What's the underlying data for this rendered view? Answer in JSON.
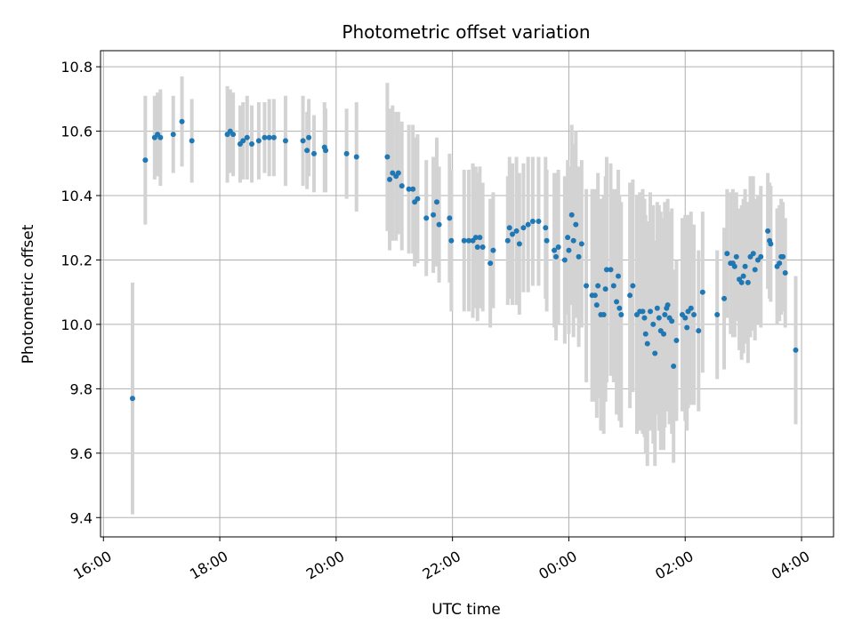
{
  "chart_data": {
    "type": "scatter",
    "title": "Photometric offset variation",
    "xlabel": "UTC time",
    "ylabel": "Photometric offset",
    "xlim_hours": [
      15.95,
      28.55
    ],
    "ylim": [
      9.34,
      10.85
    ],
    "x_ticks": [
      {
        "hour": 16,
        "label": "16:00"
      },
      {
        "hour": 18,
        "label": "18:00"
      },
      {
        "hour": 20,
        "label": "20:00"
      },
      {
        "hour": 22,
        "label": "22:00"
      },
      {
        "hour": 24,
        "label": "00:00"
      },
      {
        "hour": 26,
        "label": "02:00"
      },
      {
        "hour": 28,
        "label": "04:00"
      }
    ],
    "y_ticks": [
      {
        "value": 9.4,
        "label": "9.4"
      },
      {
        "value": 9.6,
        "label": "9.6"
      },
      {
        "value": 9.8,
        "label": "9.8"
      },
      {
        "value": 10.0,
        "label": "10.0"
      },
      {
        "value": 10.2,
        "label": "10.2"
      },
      {
        "value": 10.4,
        "label": "10.4"
      },
      {
        "value": 10.6,
        "label": "10.6"
      },
      {
        "value": 10.8,
        "label": "10.8"
      }
    ],
    "grid": true,
    "colors": {
      "point": "#1f77b4",
      "errorbar": "#d3d3d3",
      "grid": "#b0b0b0"
    },
    "points": [
      [
        16.5,
        9.77,
        0.36
      ],
      [
        16.72,
        10.51,
        0.2
      ],
      [
        16.88,
        10.58,
        0.13
      ],
      [
        16.93,
        10.59,
        0.13
      ],
      [
        16.98,
        10.58,
        0.15
      ],
      [
        17.2,
        10.59,
        0.12
      ],
      [
        17.35,
        10.63,
        0.14
      ],
      [
        17.52,
        10.57,
        0.13
      ],
      [
        18.13,
        10.59,
        0.15
      ],
      [
        18.18,
        10.6,
        0.13
      ],
      [
        18.23,
        10.59,
        0.13
      ],
      [
        18.35,
        10.56,
        0.12
      ],
      [
        18.4,
        10.57,
        0.12
      ],
      [
        18.47,
        10.58,
        0.13
      ],
      [
        18.55,
        10.56,
        0.12
      ],
      [
        18.67,
        10.57,
        0.12
      ],
      [
        18.77,
        10.58,
        0.11
      ],
      [
        18.85,
        10.58,
        0.12
      ],
      [
        18.93,
        10.58,
        0.12
      ],
      [
        19.13,
        10.57,
        0.14
      ],
      [
        19.43,
        10.57,
        0.14
      ],
      [
        19.5,
        10.54,
        0.12
      ],
      [
        19.53,
        10.58,
        0.12
      ],
      [
        19.62,
        10.53,
        0.12
      ],
      [
        19.8,
        10.55,
        0.14
      ],
      [
        19.82,
        10.54,
        0.13
      ],
      [
        20.18,
        10.53,
        0.14
      ],
      [
        20.35,
        10.52,
        0.17
      ],
      [
        20.88,
        10.52,
        0.23
      ],
      [
        20.92,
        10.45,
        0.22
      ],
      [
        20.97,
        10.47,
        0.21
      ],
      [
        21.03,
        10.46,
        0.2
      ],
      [
        21.07,
        10.47,
        0.19
      ],
      [
        21.13,
        10.43,
        0.2
      ],
      [
        21.25,
        10.42,
        0.2
      ],
      [
        21.32,
        10.42,
        0.2
      ],
      [
        21.35,
        10.38,
        0.2
      ],
      [
        21.4,
        10.39,
        0.2
      ],
      [
        21.55,
        10.33,
        0.18
      ],
      [
        21.67,
        10.34,
        0.18
      ],
      [
        21.73,
        10.38,
        0.2
      ],
      [
        21.77,
        10.31,
        0.18
      ],
      [
        21.95,
        10.33,
        0.2
      ],
      [
        21.98,
        10.26,
        0.22
      ],
      [
        22.2,
        10.26,
        0.22
      ],
      [
        22.28,
        10.26,
        0.22
      ],
      [
        22.35,
        10.26,
        0.24
      ],
      [
        22.4,
        10.27,
        0.22
      ],
      [
        22.43,
        10.24,
        0.23
      ],
      [
        22.47,
        10.27,
        0.22
      ],
      [
        22.52,
        10.24,
        0.2
      ],
      [
        22.65,
        10.19,
        0.2
      ],
      [
        22.7,
        10.23,
        0.18
      ],
      [
        22.95,
        10.26,
        0.2
      ],
      [
        22.98,
        10.3,
        0.22
      ],
      [
        23.03,
        10.28,
        0.22
      ],
      [
        23.1,
        10.29,
        0.23
      ],
      [
        23.15,
        10.25,
        0.22
      ],
      [
        23.22,
        10.3,
        0.2
      ],
      [
        23.3,
        10.31,
        0.21
      ],
      [
        23.38,
        10.32,
        0.2
      ],
      [
        23.48,
        10.32,
        0.2
      ],
      [
        23.6,
        10.3,
        0.22
      ],
      [
        23.62,
        10.26,
        0.22
      ],
      [
        23.75,
        10.23,
        0.24
      ],
      [
        23.78,
        10.21,
        0.26
      ],
      [
        23.82,
        10.24,
        0.24
      ],
      [
        23.93,
        10.2,
        0.26
      ],
      [
        23.98,
        10.27,
        0.24
      ],
      [
        24.0,
        10.23,
        0.26
      ],
      [
        24.05,
        10.34,
        0.28
      ],
      [
        24.08,
        10.26,
        0.3
      ],
      [
        24.12,
        10.31,
        0.29
      ],
      [
        24.17,
        10.21,
        0.28
      ],
      [
        24.22,
        10.25,
        0.26
      ],
      [
        24.3,
        10.12,
        0.3
      ],
      [
        24.4,
        10.09,
        0.33
      ],
      [
        24.45,
        10.09,
        0.33
      ],
      [
        24.48,
        10.06,
        0.35
      ],
      [
        24.5,
        10.12,
        0.35
      ],
      [
        24.55,
        10.03,
        0.36
      ],
      [
        24.6,
        10.03,
        0.37
      ],
      [
        24.63,
        10.11,
        0.35
      ],
      [
        24.65,
        10.17,
        0.35
      ],
      [
        24.72,
        10.17,
        0.33
      ],
      [
        24.77,
        10.12,
        0.3
      ],
      [
        24.82,
        10.07,
        0.35
      ],
      [
        24.85,
        10.15,
        0.33
      ],
      [
        24.87,
        10.05,
        0.35
      ],
      [
        24.9,
        10.03,
        0.35
      ],
      [
        25.05,
        10.09,
        0.35
      ],
      [
        25.1,
        10.12,
        0.33
      ],
      [
        25.17,
        10.03,
        0.37
      ],
      [
        25.22,
        10.04,
        0.37
      ],
      [
        25.27,
        10.04,
        0.38
      ],
      [
        25.3,
        10.02,
        0.37
      ],
      [
        25.32,
        9.97,
        0.37
      ],
      [
        25.35,
        9.94,
        0.38
      ],
      [
        25.4,
        10.04,
        0.37
      ],
      [
        25.45,
        10.0,
        0.37
      ],
      [
        25.48,
        9.91,
        0.35
      ],
      [
        25.52,
        10.05,
        0.33
      ],
      [
        25.55,
        10.02,
        0.35
      ],
      [
        25.58,
        9.98,
        0.37
      ],
      [
        25.63,
        9.97,
        0.36
      ],
      [
        25.65,
        10.03,
        0.35
      ],
      [
        25.68,
        10.05,
        0.32
      ],
      [
        25.7,
        10.06,
        0.33
      ],
      [
        25.73,
        10.02,
        0.33
      ],
      [
        25.77,
        10.01,
        0.35
      ],
      [
        25.8,
        9.87,
        0.3
      ],
      [
        25.85,
        9.95,
        0.25
      ],
      [
        25.95,
        10.03,
        0.3
      ],
      [
        26.0,
        10.02,
        0.32
      ],
      [
        26.03,
        9.99,
        0.32
      ],
      [
        26.05,
        10.04,
        0.3
      ],
      [
        26.1,
        10.05,
        0.3
      ],
      [
        26.15,
        10.03,
        0.28
      ],
      [
        26.23,
        9.98,
        0.25
      ],
      [
        26.3,
        10.1,
        0.25
      ],
      [
        26.55,
        10.03,
        0.2
      ],
      [
        26.67,
        10.08,
        0.22
      ],
      [
        26.72,
        10.22,
        0.2
      ],
      [
        26.78,
        10.19,
        0.22
      ],
      [
        26.82,
        10.19,
        0.23
      ],
      [
        26.85,
        10.18,
        0.22
      ],
      [
        26.88,
        10.21,
        0.2
      ],
      [
        26.93,
        10.14,
        0.22
      ],
      [
        26.97,
        10.13,
        0.24
      ],
      [
        27.0,
        10.15,
        0.24
      ],
      [
        27.03,
        10.18,
        0.24
      ],
      [
        27.08,
        10.13,
        0.25
      ],
      [
        27.12,
        10.21,
        0.25
      ],
      [
        27.17,
        10.22,
        0.24
      ],
      [
        27.2,
        10.17,
        0.22
      ],
      [
        27.25,
        10.2,
        0.2
      ],
      [
        27.3,
        10.21,
        0.22
      ],
      [
        27.42,
        10.29,
        0.18
      ],
      [
        27.45,
        10.26,
        0.18
      ],
      [
        27.47,
        10.25,
        0.18
      ],
      [
        27.58,
        10.18,
        0.18
      ],
      [
        27.62,
        10.19,
        0.18
      ],
      [
        27.65,
        10.21,
        0.18
      ],
      [
        27.68,
        10.21,
        0.17
      ],
      [
        27.72,
        10.16,
        0.17
      ],
      [
        27.9,
        9.92,
        0.23
      ]
    ]
  }
}
